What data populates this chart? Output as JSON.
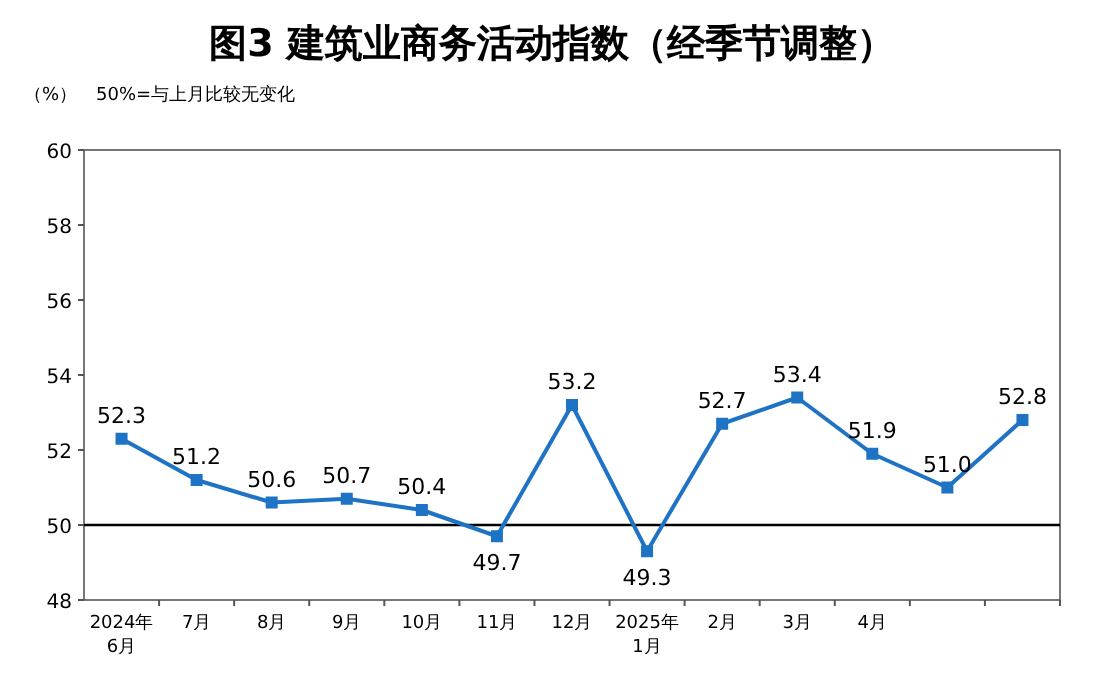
{
  "chart_data": {
    "type": "line",
    "title": "图3  建筑业商务活动指数（经季节调整）",
    "ylabel": "（%）",
    "annotations": [
      "50%=与上月比较无变化"
    ],
    "categories": [
      "2024年\n6月",
      "7月",
      "8月",
      "9月",
      "10月",
      "11月",
      "12月",
      "2025年\n1月",
      "2月",
      "3月",
      "4月",
      null,
      null
    ],
    "series": [
      {
        "color": "#1f73c4",
        "values": [
          52.3,
          51.2,
          50.6,
          50.7,
          50.4,
          49.7,
          53.2,
          49.3,
          52.7,
          53.4,
          51.9,
          51.0,
          52.8
        ],
        "value_labels": [
          "52.3",
          "51.2",
          "50.6",
          "50.7",
          "50.4",
          "49.7",
          "53.2",
          "49.3",
          "52.7",
          "53.4",
          "51.9",
          "51.0",
          "52.8"
        ]
      }
    ],
    "ylim": [
      48,
      60
    ],
    "yticks": [
      48,
      50,
      52,
      54,
      56,
      58,
      60
    ],
    "marker": "square",
    "line_style": "solid",
    "ref_lines": [
      {
        "axis": "y",
        "value": 50,
        "color": "#000000"
      }
    ]
  }
}
